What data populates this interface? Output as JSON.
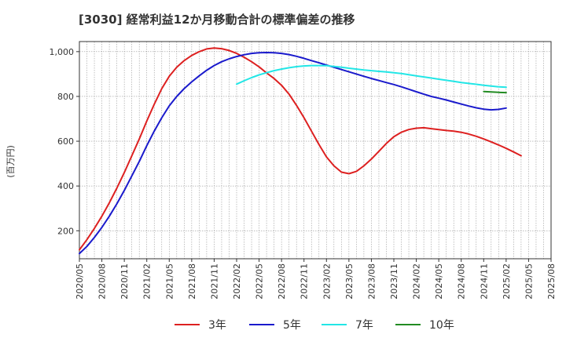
{
  "chart_data": {
    "type": "line",
    "title": "[3030]  経常利益12か月移動合計の標準偏差の推移",
    "ylabel": "(百万円)",
    "xlabel": "",
    "ylim": [
      75,
      1045
    ],
    "yticks": [
      200,
      400,
      600,
      800,
      1000
    ],
    "ytick_labels": [
      "200",
      "400",
      "600",
      "800",
      "1,000"
    ],
    "xticks": [
      "2020/05",
      "2020/08",
      "2020/11",
      "2021/02",
      "2021/05",
      "2021/08",
      "2021/11",
      "2022/02",
      "2022/05",
      "2022/08",
      "2022/11",
      "2023/02",
      "2023/05",
      "2023/08",
      "2023/11",
      "2024/02",
      "2024/05",
      "2024/08",
      "2024/11",
      "2025/02",
      "2025/05",
      "2025/08"
    ],
    "grid": true,
    "legend_position": "bottom",
    "series": [
      {
        "name": "3年",
        "color": "#dd2020",
        "points": [
          [
            "2020/05",
            115
          ],
          [
            "2020/06",
            160
          ],
          [
            "2020/07",
            210
          ],
          [
            "2020/08",
            265
          ],
          [
            "2020/09",
            325
          ],
          [
            "2020/10",
            390
          ],
          [
            "2020/11",
            460
          ],
          [
            "2020/12",
            535
          ],
          [
            "2021/01",
            610
          ],
          [
            "2021/02",
            690
          ],
          [
            "2021/03",
            765
          ],
          [
            "2021/04",
            835
          ],
          [
            "2021/05",
            890
          ],
          [
            "2021/06",
            930
          ],
          [
            "2021/07",
            960
          ],
          [
            "2021/08",
            983
          ],
          [
            "2021/09",
            1000
          ],
          [
            "2021/10",
            1012
          ],
          [
            "2021/11",
            1016
          ],
          [
            "2021/12",
            1013
          ],
          [
            "2022/01",
            1005
          ],
          [
            "2022/02",
            992
          ],
          [
            "2022/03",
            975
          ],
          [
            "2022/04",
            955
          ],
          [
            "2022/05",
            932
          ],
          [
            "2022/06",
            905
          ],
          [
            "2022/07",
            880
          ],
          [
            "2022/08",
            850
          ],
          [
            "2022/09",
            810
          ],
          [
            "2022/10",
            760
          ],
          [
            "2022/11",
            705
          ],
          [
            "2022/12",
            645
          ],
          [
            "2023/01",
            585
          ],
          [
            "2023/02",
            530
          ],
          [
            "2023/03",
            490
          ],
          [
            "2023/04",
            462
          ],
          [
            "2023/05",
            455
          ],
          [
            "2023/06",
            465
          ],
          [
            "2023/07",
            490
          ],
          [
            "2023/08",
            520
          ],
          [
            "2023/09",
            555
          ],
          [
            "2023/10",
            590
          ],
          [
            "2023/11",
            620
          ],
          [
            "2023/12",
            640
          ],
          [
            "2024/01",
            652
          ],
          [
            "2024/02",
            658
          ],
          [
            "2024/03",
            660
          ],
          [
            "2024/04",
            656
          ],
          [
            "2024/05",
            652
          ],
          [
            "2024/06",
            648
          ],
          [
            "2024/07",
            645
          ],
          [
            "2024/08",
            640
          ],
          [
            "2024/09",
            632
          ],
          [
            "2024/10",
            622
          ],
          [
            "2024/11",
            610
          ],
          [
            "2024/12",
            597
          ],
          [
            "2025/01",
            583
          ],
          [
            "2025/02",
            568
          ],
          [
            "2025/03",
            552
          ],
          [
            "2025/04",
            535
          ]
        ]
      },
      {
        "name": "5年",
        "color": "#1a1acc",
        "points": [
          [
            "2020/05",
            98
          ],
          [
            "2020/06",
            130
          ],
          [
            "2020/07",
            170
          ],
          [
            "2020/08",
            215
          ],
          [
            "2020/09",
            265
          ],
          [
            "2020/10",
            320
          ],
          [
            "2020/11",
            380
          ],
          [
            "2020/12",
            445
          ],
          [
            "2021/01",
            510
          ],
          [
            "2021/02",
            580
          ],
          [
            "2021/03",
            645
          ],
          [
            "2021/04",
            705
          ],
          [
            "2021/05",
            758
          ],
          [
            "2021/06",
            800
          ],
          [
            "2021/07",
            835
          ],
          [
            "2021/08",
            865
          ],
          [
            "2021/09",
            892
          ],
          [
            "2021/10",
            917
          ],
          [
            "2021/11",
            938
          ],
          [
            "2021/12",
            955
          ],
          [
            "2022/01",
            968
          ],
          [
            "2022/02",
            978
          ],
          [
            "2022/03",
            986
          ],
          [
            "2022/04",
            992
          ],
          [
            "2022/05",
            995
          ],
          [
            "2022/06",
            996
          ],
          [
            "2022/07",
            995
          ],
          [
            "2022/08",
            992
          ],
          [
            "2022/09",
            987
          ],
          [
            "2022/10",
            979
          ],
          [
            "2022/11",
            970
          ],
          [
            "2022/12",
            960
          ],
          [
            "2023/01",
            950
          ],
          [
            "2023/02",
            940
          ],
          [
            "2023/03",
            930
          ],
          [
            "2023/04",
            920
          ],
          [
            "2023/05",
            910
          ],
          [
            "2023/06",
            900
          ],
          [
            "2023/07",
            890
          ],
          [
            "2023/08",
            880
          ],
          [
            "2023/09",
            871
          ],
          [
            "2023/10",
            862
          ],
          [
            "2023/11",
            853
          ],
          [
            "2023/12",
            843
          ],
          [
            "2024/01",
            832
          ],
          [
            "2024/02",
            821
          ],
          [
            "2024/03",
            810
          ],
          [
            "2024/04",
            800
          ],
          [
            "2024/05",
            792
          ],
          [
            "2024/06",
            784
          ],
          [
            "2024/07",
            775
          ],
          [
            "2024/08",
            766
          ],
          [
            "2024/09",
            757
          ],
          [
            "2024/10",
            749
          ],
          [
            "2024/11",
            743
          ],
          [
            "2024/12",
            740
          ],
          [
            "2025/01",
            742
          ],
          [
            "2025/02",
            748
          ]
        ]
      },
      {
        "name": "7年",
        "color": "#22e6e6",
        "points": [
          [
            "2022/02",
            855
          ],
          [
            "2022/03",
            870
          ],
          [
            "2022/04",
            884
          ],
          [
            "2022/05",
            896
          ],
          [
            "2022/06",
            906
          ],
          [
            "2022/07",
            915
          ],
          [
            "2022/08",
            922
          ],
          [
            "2022/09",
            928
          ],
          [
            "2022/10",
            933
          ],
          [
            "2022/11",
            936
          ],
          [
            "2022/12",
            938
          ],
          [
            "2023/01",
            938
          ],
          [
            "2023/02",
            937
          ],
          [
            "2023/03",
            934
          ],
          [
            "2023/04",
            930
          ],
          [
            "2023/05",
            926
          ],
          [
            "2023/06",
            922
          ],
          [
            "2023/07",
            918
          ],
          [
            "2023/08",
            915
          ],
          [
            "2023/09",
            912
          ],
          [
            "2023/10",
            909
          ],
          [
            "2023/11",
            906
          ],
          [
            "2023/12",
            902
          ],
          [
            "2024/01",
            897
          ],
          [
            "2024/02",
            892
          ],
          [
            "2024/03",
            887
          ],
          [
            "2024/04",
            882
          ],
          [
            "2024/05",
            877
          ],
          [
            "2024/06",
            872
          ],
          [
            "2024/07",
            867
          ],
          [
            "2024/08",
            862
          ],
          [
            "2024/09",
            858
          ],
          [
            "2024/10",
            854
          ],
          [
            "2024/11",
            850
          ],
          [
            "2024/12",
            846
          ],
          [
            "2025/01",
            843
          ],
          [
            "2025/02",
            841
          ]
        ]
      },
      {
        "name": "10年",
        "color": "#228b22",
        "points": [
          [
            "2024/11",
            822
          ],
          [
            "2024/12",
            820
          ],
          [
            "2025/01",
            818
          ],
          [
            "2025/02",
            817
          ]
        ]
      }
    ]
  }
}
